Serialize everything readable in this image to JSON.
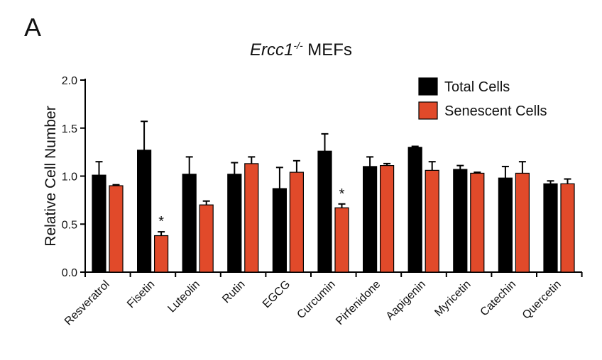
{
  "panel_label": "A",
  "title": {
    "gene": "Ercc1",
    "superscript": "-/-",
    "suffix": " MEFs"
  },
  "chart_data": {
    "type": "bar",
    "title": "Ercc1-/- MEFs",
    "ylabel": "Relative Cell Number",
    "xlabel": "",
    "ylim": [
      0,
      2.0
    ],
    "yticks": [
      "0.0",
      "0.5",
      "1.0",
      "1.5",
      "2.0"
    ],
    "categories": [
      "Resveratrol",
      "Fisetin",
      "Luteolin",
      "Rutin",
      "EGCG",
      "Curcumin",
      "Pirfenidone",
      "Aapigenin",
      "Myricetin",
      "Catechin",
      "Quercetin"
    ],
    "series": [
      {
        "name": "Total Cells",
        "color": "#000000",
        "values": [
          1.01,
          1.27,
          1.02,
          1.02,
          0.87,
          1.26,
          1.1,
          1.3,
          1.07,
          0.98,
          0.92
        ],
        "errors": [
          0.14,
          0.3,
          0.18,
          0.12,
          0.22,
          0.18,
          0.1,
          0.01,
          0.04,
          0.12,
          0.03
        ]
      },
      {
        "name": "Senescent Cells",
        "color": "#e14a2a",
        "values": [
          0.9,
          0.38,
          0.7,
          1.13,
          1.04,
          0.67,
          1.11,
          1.06,
          1.03,
          1.03,
          0.92
        ],
        "errors": [
          0.01,
          0.04,
          0.04,
          0.07,
          0.12,
          0.04,
          0.02,
          0.09,
          0.01,
          0.12,
          0.05
        ]
      }
    ],
    "annotations": [
      {
        "category": "Fisetin",
        "series": "Senescent Cells",
        "text": "*"
      },
      {
        "category": "Curcumin",
        "series": "Senescent Cells",
        "text": "*"
      }
    ],
    "legend": {
      "position": "top-right",
      "entries": [
        "Total Cells",
        "Senescent Cells"
      ]
    },
    "grid": false
  }
}
